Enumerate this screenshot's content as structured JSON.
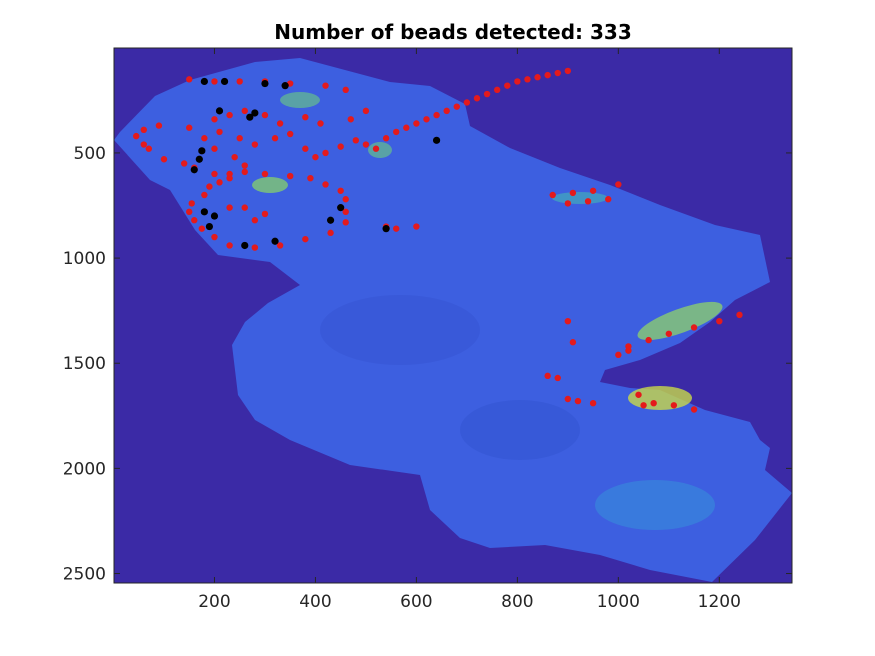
{
  "chart_data": {
    "type": "scatter",
    "title": "Number of beads detected: 333",
    "xlabel": "",
    "ylabel": "",
    "xlim": [
      1,
      1344
    ],
    "ylim": [
      2545,
      1
    ],
    "y_reversed": true,
    "grid": false,
    "xticks": [
      200,
      400,
      600,
      800,
      1000,
      1200
    ],
    "yticks": [
      500,
      1000,
      1500,
      2000,
      2500
    ],
    "background_color": "#3b2aa6",
    "tissue_color": "#3d5fe0",
    "series": [
      {
        "color": "#e41a1c",
        "points": [
          [
            150,
            150
          ],
          [
            200,
            160
          ],
          [
            250,
            160
          ],
          [
            300,
            160
          ],
          [
            350,
            170
          ],
          [
            420,
            180
          ],
          [
            460,
            200
          ],
          [
            500,
            300
          ],
          [
            470,
            340
          ],
          [
            410,
            360
          ],
          [
            380,
            330
          ],
          [
            330,
            360
          ],
          [
            300,
            320
          ],
          [
            260,
            300
          ],
          [
            230,
            320
          ],
          [
            200,
            340
          ],
          [
            150,
            380
          ],
          [
            90,
            370
          ],
          [
            60,
            390
          ],
          [
            45,
            420
          ],
          [
            60,
            460
          ],
          [
            70,
            480
          ],
          [
            100,
            530
          ],
          [
            140,
            550
          ],
          [
            160,
            570
          ],
          [
            200,
            600
          ],
          [
            230,
            600
          ],
          [
            260,
            590
          ],
          [
            300,
            600
          ],
          [
            350,
            610
          ],
          [
            390,
            620
          ],
          [
            420,
            650
          ],
          [
            450,
            680
          ],
          [
            460,
            720
          ],
          [
            460,
            780
          ],
          [
            460,
            830
          ],
          [
            430,
            880
          ],
          [
            380,
            910
          ],
          [
            330,
            940
          ],
          [
            280,
            950
          ],
          [
            230,
            940
          ],
          [
            200,
            900
          ],
          [
            175,
            860
          ],
          [
            160,
            820
          ],
          [
            150,
            780
          ],
          [
            155,
            740
          ],
          [
            180,
            700
          ],
          [
            190,
            660
          ],
          [
            210,
            640
          ],
          [
            230,
            620
          ],
          [
            260,
            560
          ],
          [
            240,
            520
          ],
          [
            200,
            480
          ],
          [
            180,
            430
          ],
          [
            210,
            400
          ],
          [
            250,
            430
          ],
          [
            280,
            460
          ],
          [
            320,
            430
          ],
          [
            350,
            410
          ],
          [
            380,
            480
          ],
          [
            400,
            520
          ],
          [
            420,
            500
          ],
          [
            450,
            470
          ],
          [
            480,
            440
          ],
          [
            500,
            460
          ],
          [
            520,
            480
          ],
          [
            540,
            430
          ],
          [
            560,
            400
          ],
          [
            580,
            380
          ],
          [
            600,
            360
          ],
          [
            620,
            340
          ],
          [
            640,
            320
          ],
          [
            660,
            300
          ],
          [
            680,
            280
          ],
          [
            700,
            260
          ],
          [
            720,
            240
          ],
          [
            740,
            220
          ],
          [
            760,
            200
          ],
          [
            780,
            180
          ],
          [
            800,
            160
          ],
          [
            820,
            150
          ],
          [
            840,
            140
          ],
          [
            860,
            130
          ],
          [
            880,
            120
          ],
          [
            900,
            110
          ],
          [
            870,
            700
          ],
          [
            910,
            690
          ],
          [
            950,
            680
          ],
          [
            1000,
            650
          ],
          [
            980,
            720
          ],
          [
            940,
            730
          ],
          [
            900,
            740
          ],
          [
            1020,
            1420
          ],
          [
            1060,
            1390
          ],
          [
            1100,
            1360
          ],
          [
            1150,
            1330
          ],
          [
            1200,
            1300
          ],
          [
            1240,
            1270
          ],
          [
            1000,
            1460
          ],
          [
            1020,
            1440
          ],
          [
            900,
            1300
          ],
          [
            910,
            1400
          ],
          [
            860,
            1560
          ],
          [
            880,
            1570
          ],
          [
            900,
            1670
          ],
          [
            920,
            1680
          ],
          [
            950,
            1690
          ],
          [
            1040,
            1650
          ],
          [
            1070,
            1690
          ],
          [
            1110,
            1700
          ],
          [
            1150,
            1720
          ],
          [
            1050,
            1700
          ],
          [
            560,
            860
          ],
          [
            600,
            850
          ],
          [
            540,
            850
          ],
          [
            300,
            790
          ],
          [
            280,
            820
          ],
          [
            260,
            760
          ],
          [
            230,
            760
          ]
        ]
      },
      {
        "color": "#000000",
        "points": [
          [
            180,
            160
          ],
          [
            220,
            160
          ],
          [
            300,
            170
          ],
          [
            340,
            180
          ],
          [
            280,
            310
          ],
          [
            270,
            330
          ],
          [
            210,
            300
          ],
          [
            175,
            490
          ],
          [
            170,
            530
          ],
          [
            160,
            580
          ],
          [
            180,
            780
          ],
          [
            200,
            800
          ],
          [
            190,
            850
          ],
          [
            260,
            940
          ],
          [
            320,
            920
          ],
          [
            430,
            820
          ],
          [
            450,
            760
          ],
          [
            640,
            440
          ],
          [
            540,
            860
          ]
        ]
      }
    ]
  }
}
